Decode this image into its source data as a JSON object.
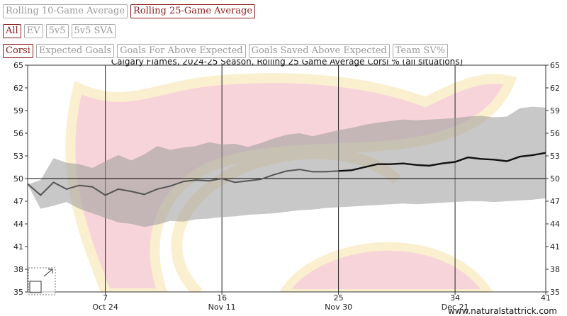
{
  "controls": {
    "period": [
      {
        "label": "Rolling 10-Game Average",
        "active": false
      },
      {
        "label": "Rolling 25-Game Average",
        "active": true
      }
    ],
    "situation": [
      {
        "label": "All",
        "active": true
      },
      {
        "label": "EV",
        "active": false
      },
      {
        "label": "5v5",
        "active": false
      },
      {
        "label": "5v5 SVA",
        "active": false
      }
    ],
    "metric": [
      {
        "label": "Corsi",
        "active": true
      },
      {
        "label": "Expected Goals",
        "active": false
      },
      {
        "label": "Goals For Above Expected",
        "active": false
      },
      {
        "label": "Goals Saved Above Expected",
        "active": false
      },
      {
        "label": "Team SV%",
        "active": false
      }
    ]
  },
  "chart_data": {
    "type": "line",
    "title": "Calgary Flames, 2024-25 Season, Rolling 25 Game Average Corsi % (all situations)",
    "watermark": "www.naturalstattrick.com",
    "xlim": [
      1,
      41
    ],
    "ylim": [
      35,
      65
    ],
    "yticks": [
      35,
      38,
      41,
      44,
      47,
      50,
      53,
      56,
      59,
      62,
      65
    ],
    "xticks": [
      {
        "value": 7,
        "label": "7",
        "date": "Oct 24"
      },
      {
        "value": 16,
        "label": "16",
        "date": "Nov 11"
      },
      {
        "value": 25,
        "label": "25",
        "date": "Nov 30"
      },
      {
        "value": 34,
        "label": "34",
        "date": "Dec 21"
      },
      {
        "value": 41,
        "label": "41",
        "date": ""
      }
    ],
    "reference_line": 50,
    "grid": "vertical",
    "colors": {
      "line": "#555555",
      "full_window_line": "#111111",
      "band": "#9a9a9a",
      "ref_line": "#000000",
      "logo_red": "#e87a8a",
      "logo_yellow": "#f5d890"
    },
    "full_window_start": 25,
    "series": [
      {
        "x": [
          1,
          2,
          3,
          4,
          5,
          6,
          7,
          8,
          9,
          10,
          11,
          12,
          13,
          14,
          15,
          16,
          17,
          18,
          19,
          20,
          21,
          22,
          23,
          24,
          25,
          26,
          27,
          28,
          29,
          30,
          31,
          32,
          33,
          34,
          35,
          36,
          37,
          38,
          39,
          40,
          41
        ],
        "values": [
          49.3,
          47.8,
          49.5,
          48.6,
          49.1,
          48.9,
          47.8,
          48.6,
          48.3,
          47.9,
          48.6,
          49.0,
          49.6,
          49.8,
          49.7,
          50.0,
          49.5,
          49.7,
          49.9,
          50.5,
          51.0,
          51.2,
          50.9,
          50.9,
          51.0,
          51.1,
          51.5,
          51.9,
          51.9,
          52.0,
          51.8,
          51.7,
          52.0,
          52.2,
          52.8,
          52.6,
          52.5,
          52.3,
          52.9,
          53.1,
          53.4
        ]
      }
    ],
    "band": {
      "x": [
        1,
        2,
        3,
        4,
        5,
        6,
        7,
        8,
        9,
        10,
        11,
        12,
        13,
        14,
        15,
        16,
        17,
        18,
        19,
        20,
        21,
        22,
        23,
        24,
        25,
        26,
        27,
        28,
        29,
        30,
        31,
        32,
        33,
        34,
        35,
        36,
        37,
        38,
        39,
        40,
        41
      ],
      "upper": [
        49.2,
        49.8,
        52.7,
        52.1,
        51.9,
        51.4,
        52.3,
        53.1,
        52.4,
        53.2,
        54.3,
        53.8,
        54.1,
        54.3,
        54.8,
        54.5,
        54.6,
        54.2,
        54.7,
        55.3,
        55.8,
        56.0,
        55.6,
        56.0,
        56.4,
        56.7,
        57.1,
        57.4,
        57.6,
        57.8,
        57.7,
        57.8,
        57.9,
        58.0,
        58.2,
        58.3,
        58.1,
        58.2,
        59.3,
        59.5,
        59.4
      ],
      "lower": [
        49.2,
        46.0,
        46.4,
        46.9,
        46.0,
        45.4,
        44.8,
        44.2,
        44.0,
        43.6,
        43.9,
        44.4,
        44.3,
        44.6,
        44.7,
        44.9,
        45.0,
        45.2,
        45.3,
        45.4,
        45.6,
        45.8,
        45.9,
        46.1,
        46.2,
        46.3,
        46.4,
        46.5,
        46.6,
        46.7,
        46.6,
        46.7,
        46.8,
        46.9,
        47.0,
        47.0,
        46.9,
        47.0,
        47.1,
        47.2,
        47.4
      ]
    }
  }
}
